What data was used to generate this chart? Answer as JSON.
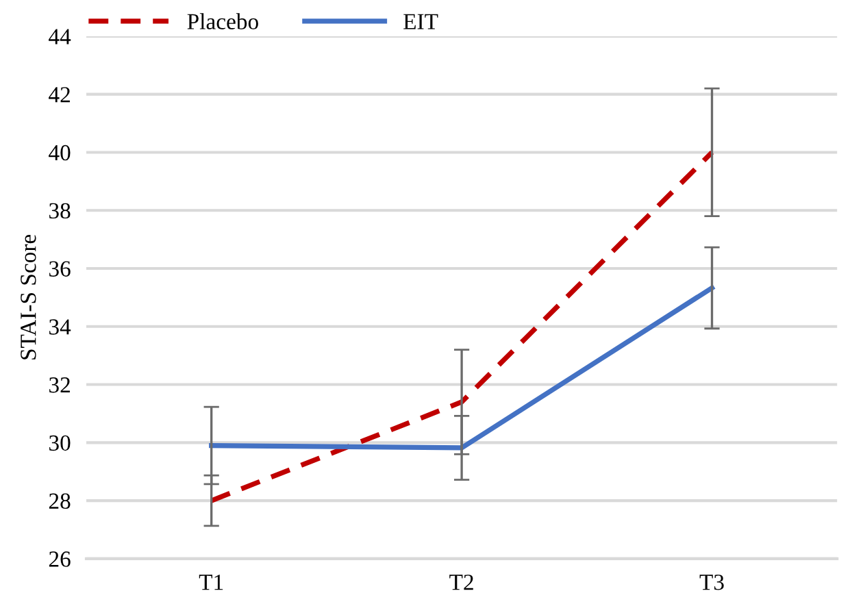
{
  "chart_data": {
    "type": "line",
    "ylabel": "STAI-S Score",
    "categories": [
      "T1",
      "T2",
      "T3"
    ],
    "series": [
      {
        "name": "Placebo",
        "color": "#c00000",
        "line_style": "dashed",
        "values": [
          28.0,
          31.4,
          40.0
        ],
        "errors": [
          0.87,
          1.8,
          2.2
        ]
      },
      {
        "name": "EIT",
        "color": "#4472c4",
        "line_style": "solid",
        "values": [
          29.9,
          29.82,
          35.33
        ],
        "errors": [
          1.33,
          1.1,
          1.4
        ]
      }
    ],
    "ylim": [
      26,
      44
    ],
    "yticks": [
      26,
      28,
      30,
      32,
      34,
      36,
      38,
      40,
      42,
      44
    ],
    "grid": "y",
    "legend": "top left",
    "marker": "none"
  }
}
